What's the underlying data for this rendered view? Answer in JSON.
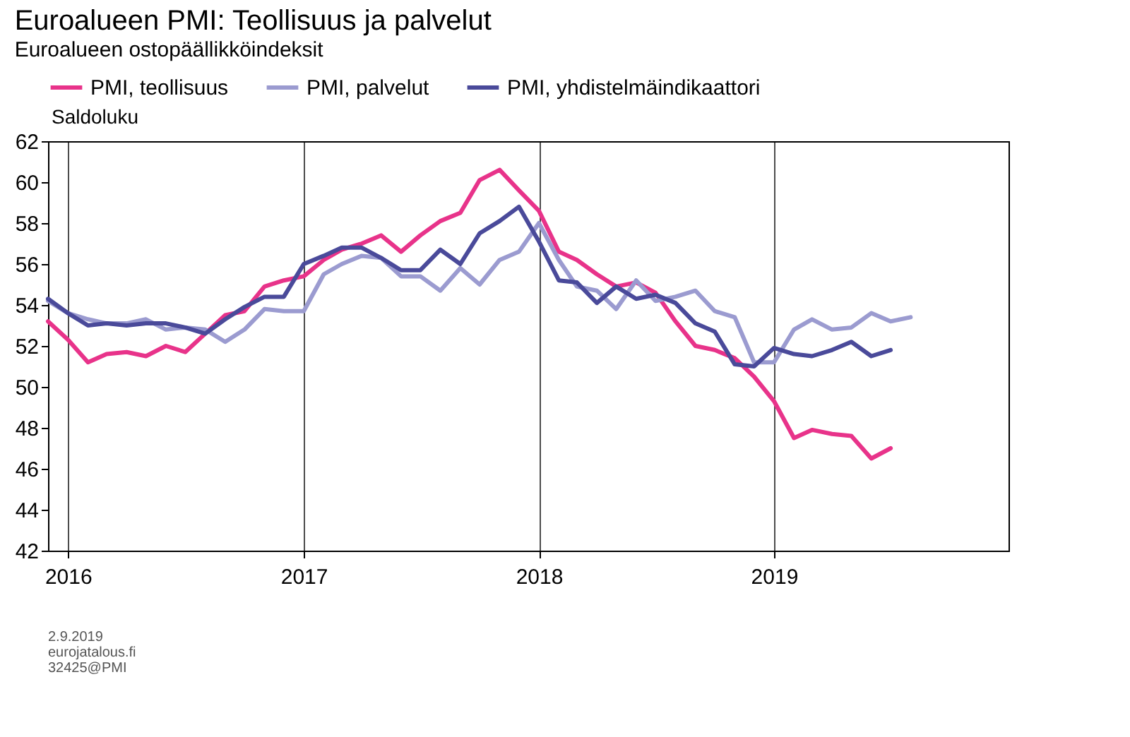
{
  "chart_data": {
    "type": "line",
    "title": "Euroalueen PMI: Teollisuus ja palvelut",
    "subtitle": "Euroalueen ostopäällikköindeksit",
    "ylabel": "Saldoluku",
    "x": [
      "2015-12",
      "2016-01",
      "2016-02",
      "2016-03",
      "2016-04",
      "2016-05",
      "2016-06",
      "2016-07",
      "2016-08",
      "2016-09",
      "2016-10",
      "2016-11",
      "2016-12",
      "2017-01",
      "2017-02",
      "2017-03",
      "2017-04",
      "2017-05",
      "2017-06",
      "2017-07",
      "2017-08",
      "2017-09",
      "2017-10",
      "2017-11",
      "2017-12",
      "2018-01",
      "2018-02",
      "2018-03",
      "2018-04",
      "2018-05",
      "2018-06",
      "2018-07",
      "2018-08",
      "2018-09",
      "2018-10",
      "2018-11",
      "2018-12",
      "2019-01",
      "2019-02",
      "2019-03",
      "2019-04",
      "2019-05",
      "2019-06",
      "2019-07",
      "2019-08"
    ],
    "series": [
      {
        "name": "PMI, teollisuus",
        "color": "#e8338a",
        "values": [
          53.2,
          52.3,
          51.2,
          51.6,
          51.7,
          51.5,
          52.0,
          51.7,
          52.6,
          53.5,
          53.7,
          54.9,
          55.2,
          55.4,
          56.2,
          56.7,
          57.0,
          57.4,
          56.6,
          57.4,
          58.1,
          58.5,
          60.1,
          60.6,
          59.6,
          58.6,
          56.6,
          56.2,
          55.5,
          54.9,
          55.1,
          54.6,
          53.2,
          52.0,
          51.8,
          51.4,
          50.5,
          49.3,
          47.5,
          47.9,
          47.7,
          47.6,
          46.5,
          47.0,
          null
        ]
      },
      {
        "name": "PMI, palvelut",
        "color": "#9b9bd0",
        "values": [
          54.2,
          53.6,
          53.3,
          53.1,
          53.1,
          53.3,
          52.8,
          52.9,
          52.8,
          52.2,
          52.8,
          53.8,
          53.7,
          53.7,
          55.5,
          56.0,
          56.4,
          56.3,
          55.4,
          55.4,
          54.7,
          55.8,
          55.0,
          56.2,
          56.6,
          58.0,
          56.2,
          54.9,
          54.7,
          53.8,
          55.2,
          54.2,
          54.4,
          54.7,
          53.7,
          53.4,
          51.2,
          51.2,
          52.8,
          53.3,
          52.8,
          52.9,
          53.6,
          53.2,
          53.4
        ]
      },
      {
        "name": "PMI, yhdistelmäindikaattori",
        "color": "#4a4a9a",
        "values": [
          54.3,
          53.6,
          53.0,
          53.1,
          53.0,
          53.1,
          53.1,
          52.9,
          52.6,
          53.3,
          53.9,
          54.4,
          54.4,
          56.0,
          56.4,
          56.8,
          56.8,
          56.3,
          55.7,
          55.7,
          56.7,
          56.0,
          57.5,
          58.1,
          58.8,
          57.1,
          55.2,
          55.1,
          54.1,
          54.9,
          54.3,
          54.5,
          54.1,
          53.1,
          52.7,
          51.1,
          51.0,
          51.9,
          51.6,
          51.5,
          51.8,
          52.2,
          51.5,
          51.8,
          null
        ]
      }
    ],
    "xlim": [
      "2015-12-01",
      "2019-12-31"
    ],
    "xticks": [
      {
        "value": "2016-01-01",
        "label": "2016"
      },
      {
        "value": "2017-01-01",
        "label": "2017"
      },
      {
        "value": "2018-01-01",
        "label": "2018"
      },
      {
        "value": "2019-01-01",
        "label": "2019"
      }
    ],
    "ylim": [
      42,
      62
    ],
    "yticks": [
      42,
      44,
      46,
      48,
      50,
      52,
      54,
      56,
      58,
      60,
      62
    ],
    "grid": "x",
    "legend": "top",
    "line_style": "solid",
    "marker": "none",
    "annotations": [
      "2.9.2019",
      "eurojatalous.fi",
      "32425@PMI"
    ]
  }
}
